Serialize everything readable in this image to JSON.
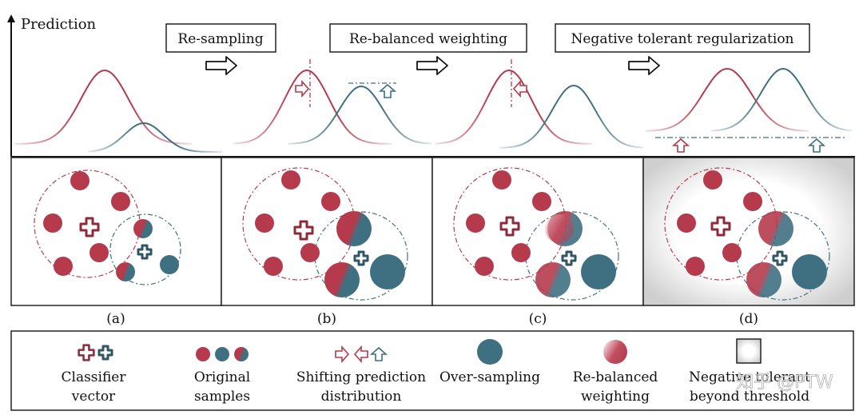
{
  "axis": {
    "y_label": "Prediction"
  },
  "steps": [
    {
      "label": "Re-sampling"
    },
    {
      "label": "Re-balanced weighting"
    },
    {
      "label": "Negative tolerant regularization"
    }
  ],
  "panels": [
    {
      "label": "(a)"
    },
    {
      "label": "(b)"
    },
    {
      "label": "(c)"
    },
    {
      "label": "(d)"
    }
  ],
  "legend": [
    {
      "line1": "Classifier",
      "line2": "vector"
    },
    {
      "line1": "Original",
      "line2": "samples"
    },
    {
      "line1": "Shifting prediction",
      "line2": "distribution"
    },
    {
      "line1": "Over-sampling",
      "line2": ""
    },
    {
      "line1": "Re-balanced",
      "line2": "weighting"
    },
    {
      "line1": "Negative tolerant",
      "line2": "beyond threshold"
    }
  ],
  "watermark": "知乎 @PTW",
  "colors": {
    "red": "#b43a4c",
    "teal": "#3f7082",
    "stroke": "#222222"
  }
}
